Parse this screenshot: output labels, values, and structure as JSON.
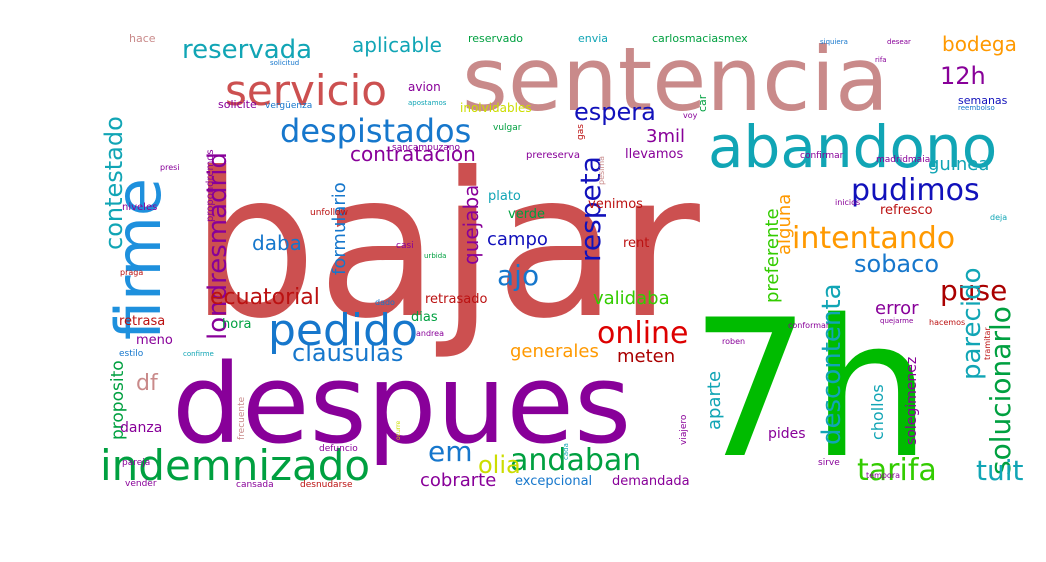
{
  "wordcloud": {
    "words": [
      {
        "text": "bajar",
        "color": "#cc5050",
        "vertical": false
      },
      {
        "text": "7h",
        "color": "#00bb00",
        "vertical": false
      },
      {
        "text": "despues",
        "color": "#880099",
        "vertical": false
      },
      {
        "text": "sentencia",
        "color": "#c98a8a",
        "vertical": false
      },
      {
        "text": "firme",
        "color": "#1e90dd",
        "vertical": true
      },
      {
        "text": "abandono",
        "color": "#11a5b5",
        "vertical": false
      },
      {
        "text": "indemnizado",
        "color": "#00a040",
        "vertical": false
      },
      {
        "text": "servicio",
        "color": "#cc5050",
        "vertical": false
      },
      {
        "text": "pedido",
        "color": "#1677cc",
        "vertical": false
      },
      {
        "text": "despistados",
        "color": "#1677cc",
        "vertical": false
      },
      {
        "text": "pudimos",
        "color": "#1111bb",
        "vertical": false
      },
      {
        "text": "intentando",
        "color": "#ff9900",
        "vertical": false
      },
      {
        "text": "solucionarlo",
        "color": "#00a040",
        "vertical": true
      },
      {
        "text": "tarifa",
        "color": "#33cc00",
        "vertical": false
      },
      {
        "text": "andaban",
        "color": "#00a040",
        "vertical": false
      },
      {
        "text": "online",
        "color": "#dd0000",
        "vertical": false
      },
      {
        "text": "respeta",
        "color": "#1111bb",
        "vertical": true
      },
      {
        "text": "clausulas",
        "color": "#1677cc",
        "vertical": false
      },
      {
        "text": "reservada",
        "color": "#11a5b5",
        "vertical": false
      },
      {
        "text": "londresmadrid",
        "color": "#880099",
        "vertical": true
      },
      {
        "text": "contestado",
        "color": "#11a5b5",
        "vertical": true
      },
      {
        "text": "puse",
        "color": "#aa0000",
        "vertical": false
      },
      {
        "text": "sobaco",
        "color": "#1677cc",
        "vertical": false
      },
      {
        "text": "descontenta",
        "color": "#11a5b5",
        "vertical": true
      },
      {
        "text": "parecido",
        "color": "#11a5b5",
        "vertical": true
      },
      {
        "text": "espera",
        "color": "#1111bb",
        "vertical": false
      },
      {
        "text": "12h",
        "color": "#880099",
        "vertical": false
      },
      {
        "text": "tuit",
        "color": "#11a5b5",
        "vertical": false
      },
      {
        "text": "em",
        "color": "#1677cc",
        "vertical": false
      },
      {
        "text": "olia",
        "color": "#ccdd00",
        "vertical": false
      },
      {
        "text": "ajo",
        "color": "#1677cc",
        "vertical": false
      },
      {
        "text": "ecuatorial",
        "color": "#bb1111",
        "vertical": false
      },
      {
        "text": "df",
        "color": "#c98a8a",
        "vertical": false
      },
      {
        "text": "aplicable",
        "color": "#11a5b5",
        "vertical": false
      },
      {
        "text": "bodega",
        "color": "#ff9900",
        "vertical": false
      },
      {
        "text": "contratacion",
        "color": "#880099",
        "vertical": false
      },
      {
        "text": "quejaba",
        "color": "#880099",
        "vertical": true
      },
      {
        "text": "guinea",
        "color": "#11a5b5",
        "vertical": false
      },
      {
        "text": "daba",
        "color": "#1677cc",
        "vertical": false
      },
      {
        "text": "formulario",
        "color": "#1677cc",
        "vertical": true
      },
      {
        "text": "campo",
        "color": "#1111bb",
        "vertical": false
      },
      {
        "text": "validaba",
        "color": "#33cc00",
        "vertical": false
      },
      {
        "text": "meten",
        "color": "#aa0000",
        "vertical": false
      },
      {
        "text": "generales",
        "color": "#ff9900",
        "vertical": false
      },
      {
        "text": "cobrarte",
        "color": "#880099",
        "vertical": false
      },
      {
        "text": "error",
        "color": "#880099",
        "vertical": false
      },
      {
        "text": "alguna",
        "color": "#ff9900",
        "vertical": true
      },
      {
        "text": "preferente",
        "color": "#33cc00",
        "vertical": true
      },
      {
        "text": "aparte",
        "color": "#11a5b5",
        "vertical": true
      },
      {
        "text": "3mil",
        "color": "#880099",
        "vertical": false
      },
      {
        "text": "proposito",
        "color": "#00a040",
        "vertical": true
      },
      {
        "text": "danza",
        "color": "#880099",
        "vertical": false
      },
      {
        "text": "chollos",
        "color": "#11a5b5",
        "vertical": true
      },
      {
        "text": "solegimenez",
        "color": "#880099",
        "vertical": true
      },
      {
        "text": "pides",
        "color": "#880099",
        "vertical": false
      },
      {
        "text": "excepcional",
        "color": "#1677cc",
        "vertical": false
      },
      {
        "text": "demandada",
        "color": "#880099",
        "vertical": false
      },
      {
        "text": "plato",
        "color": "#11a5b5",
        "vertical": false
      },
      {
        "text": "verde",
        "color": "#00a040",
        "vertical": false
      },
      {
        "text": "venimos",
        "color": "#bb1111",
        "vertical": false
      },
      {
        "text": "rent",
        "color": "#bb1111",
        "vertical": false
      },
      {
        "text": "llevamos",
        "color": "#880099",
        "vertical": false
      },
      {
        "text": "retrasado",
        "color": "#bb1111",
        "vertical": false
      },
      {
        "text": "retrasa",
        "color": "#bb1111",
        "vertical": false
      },
      {
        "text": "hora",
        "color": "#00a040",
        "vertical": false
      },
      {
        "text": "dias",
        "color": "#00a040",
        "vertical": false
      },
      {
        "text": "meno",
        "color": "#880099",
        "vertical": false
      },
      {
        "text": "refresco",
        "color": "#bb1111",
        "vertical": false
      },
      {
        "text": "semanas",
        "color": "#1111bb",
        "vertical": false
      },
      {
        "text": "solicite",
        "color": "#880099",
        "vertical": false
      },
      {
        "text": "avion",
        "color": "#880099",
        "vertical": false
      },
      {
        "text": "reservado",
        "color": "#00a040",
        "vertical": false
      },
      {
        "text": "envia",
        "color": "#11a5b5",
        "vertical": false
      },
      {
        "text": "carlosmaciasmex",
        "color": "#00a040",
        "vertical": false
      },
      {
        "text": "hace",
        "color": "#c98a8a",
        "vertical": false
      },
      {
        "text": "inolvidables",
        "color": "#ccdd00",
        "vertical": false
      },
      {
        "text": "sancampuzano",
        "color": "#880099",
        "vertical": false
      },
      {
        "text": "propondremos",
        "color": "#880099",
        "vertical": true
      },
      {
        "text": "prereserva",
        "color": "#880099",
        "vertical": false
      },
      {
        "text": "unfollow",
        "color": "#bb1111",
        "vertical": false
      },
      {
        "text": "vergüenza",
        "color": "#1677cc",
        "vertical": false
      },
      {
        "text": "confirmar",
        "color": "#880099",
        "vertical": false
      },
      {
        "text": "madridmaia",
        "color": "#880099",
        "vertical": false
      },
      {
        "text": "inicios",
        "color": "#880099",
        "vertical": false
      },
      {
        "text": "vulgar",
        "color": "#00a040",
        "vertical": false
      },
      {
        "text": "car",
        "color": "#00a040",
        "vertical": true
      },
      {
        "text": "voy",
        "color": "#880099",
        "vertical": false
      },
      {
        "text": "gas",
        "color": "#bb1111",
        "vertical": true
      },
      {
        "text": "pesima",
        "color": "#c98a8a",
        "vertical": true
      },
      {
        "text": "niveles",
        "color": "#880099",
        "vertical": false
      },
      {
        "text": "casi",
        "color": "#880099",
        "vertical": false
      },
      {
        "text": "estilo",
        "color": "#1677cc",
        "vertical": false
      },
      {
        "text": "frecuente",
        "color": "#c98a8a",
        "vertical": true
      },
      {
        "text": "pareja",
        "color": "#880099",
        "vertical": false
      },
      {
        "text": "vender",
        "color": "#880099",
        "vertical": false
      },
      {
        "text": "cansada",
        "color": "#880099",
        "vertical": false
      },
      {
        "text": "desnudarse",
        "color": "#bb1111",
        "vertical": false
      },
      {
        "text": "defuncio",
        "color": "#880099",
        "vertical": false
      },
      {
        "text": "viajero",
        "color": "#880099",
        "vertical": true
      },
      {
        "text": "sirve",
        "color": "#880099",
        "vertical": false
      },
      {
        "text": "tempora",
        "color": "#880099",
        "vertical": false
      },
      {
        "text": "andrea",
        "color": "#880099",
        "vertical": false
      },
      {
        "text": "roben",
        "color": "#880099",
        "vertical": false
      },
      {
        "text": "conformar",
        "color": "#880099",
        "vertical": false
      },
      {
        "text": "hacemos",
        "color": "#bb1111",
        "vertical": false
      },
      {
        "text": "quejarme",
        "color": "#880099",
        "vertical": false
      },
      {
        "text": "tramitar",
        "color": "#bb1111",
        "vertical": true
      },
      {
        "text": "praga",
        "color": "#bb1111",
        "vertical": false
      },
      {
        "text": "urbida",
        "color": "#00a040",
        "vertical": false
      },
      {
        "text": "deja",
        "color": "#11a5b5",
        "vertical": false
      },
      {
        "text": "reembolso",
        "color": "#1677cc",
        "vertical": false
      },
      {
        "text": "siquiera",
        "color": "#1677cc",
        "vertical": false
      },
      {
        "text": "desear",
        "color": "#880099",
        "vertical": false
      },
      {
        "text": "rifa",
        "color": "#880099",
        "vertical": false
      },
      {
        "text": "solicitud",
        "color": "#1677cc",
        "vertical": false
      },
      {
        "text": "apostamos",
        "color": "#11a5b5",
        "vertical": false
      },
      {
        "text": "confirme",
        "color": "#11a5b5",
        "vertical": false
      },
      {
        "text": "presi",
        "color": "#880099",
        "vertical": false
      },
      {
        "text": "dado",
        "color": "#1677cc",
        "vertical": false
      },
      {
        "text": "cada",
        "color": "#11a5b5",
        "vertical": true
      },
      {
        "text": "ocurre",
        "color": "#ccdd00",
        "vertical": true
      }
    ]
  }
}
